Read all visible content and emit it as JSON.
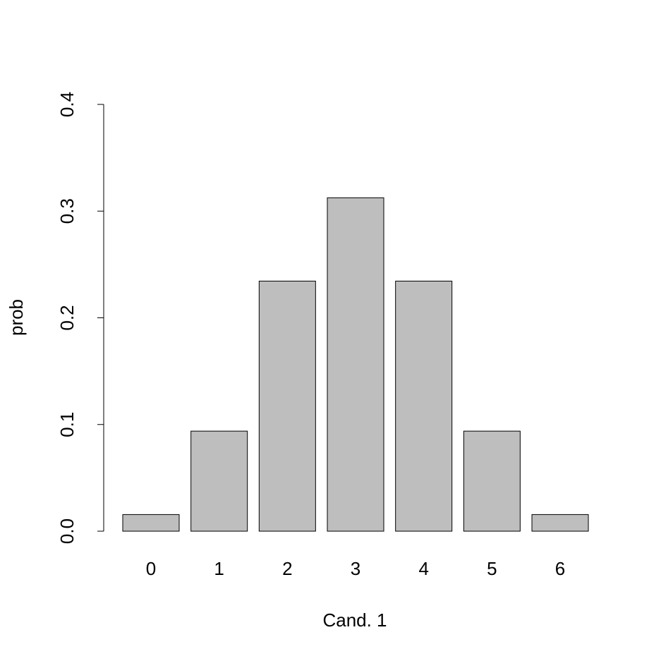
{
  "chart_data": {
    "type": "bar",
    "x_label": "Cand. 1",
    "y_label": "prob",
    "categories": [
      "0",
      "1",
      "2",
      "3",
      "4",
      "5",
      "6"
    ],
    "values": [
      0.0156,
      0.0938,
      0.2344,
      0.3125,
      0.2344,
      0.0938,
      0.0156
    ],
    "color": "#bebebe",
    "ylim": [
      0,
      0.4
    ],
    "yticks": [
      {
        "value": 0,
        "label": "0.0"
      },
      0.1,
      0.2,
      0.3,
      0.4
    ],
    "grid": false
  }
}
